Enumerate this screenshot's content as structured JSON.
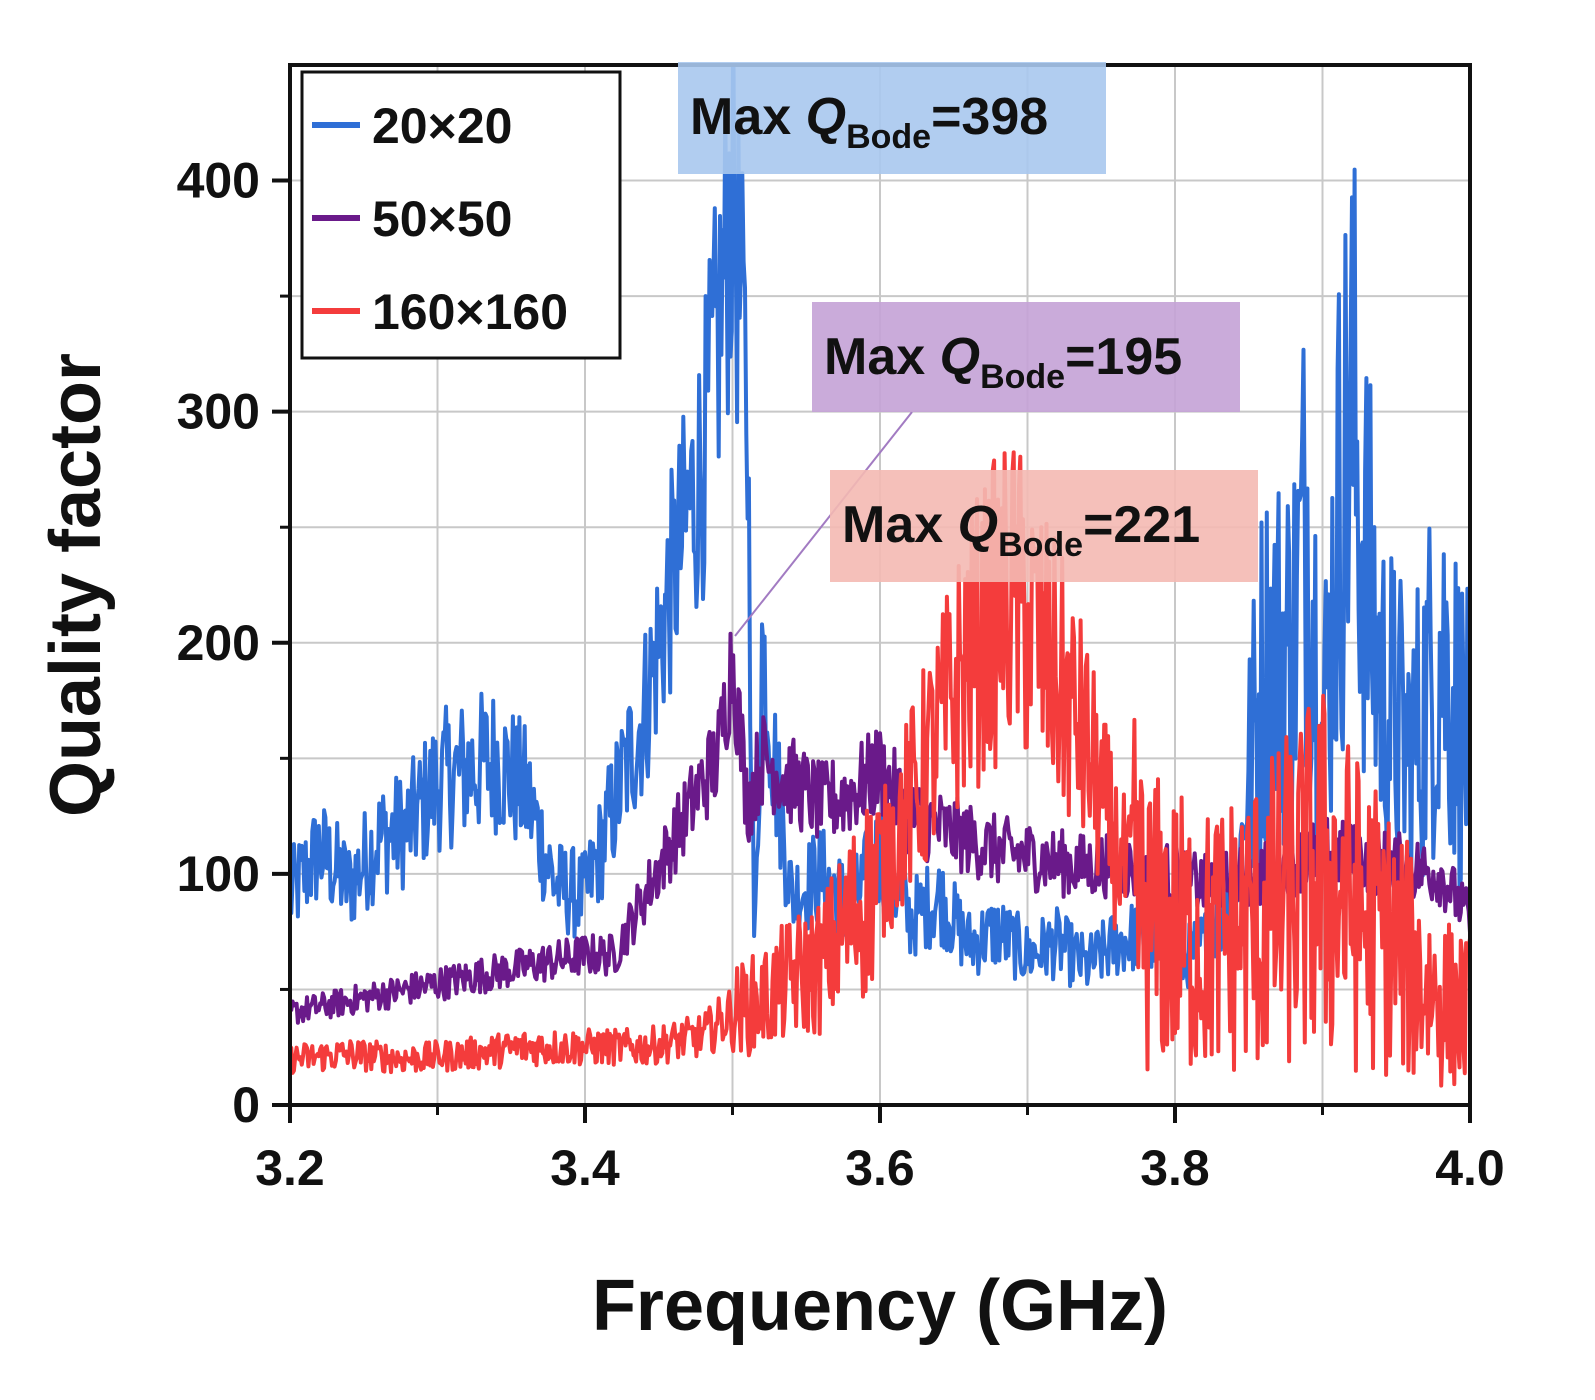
{
  "chart_data": {
    "type": "line",
    "xlabel": "Frequency (GHz)",
    "ylabel": "Quality factor",
    "xlim": [
      3.2,
      4.0
    ],
    "ylim": [
      0,
      450
    ],
    "x_ticks": [
      3.2,
      3.4,
      3.6,
      3.8,
      4.0
    ],
    "x_tick_labels": [
      "3.2",
      "3.4",
      "3.6",
      "3.8",
      "4.0"
    ],
    "y_ticks": [
      0,
      100,
      200,
      300,
      400
    ],
    "y_tick_labels": [
      "0",
      "100",
      "200",
      "300",
      "400"
    ],
    "grid": true,
    "legend_position": "top-left",
    "series": [
      {
        "name": "20×20",
        "color": "#2f6fd6",
        "points": [
          [
            3.2,
            90
          ],
          [
            3.22,
            110
          ],
          [
            3.24,
            95
          ],
          [
            3.26,
            115
          ],
          [
            3.28,
            120
          ],
          [
            3.3,
            140
          ],
          [
            3.32,
            145
          ],
          [
            3.34,
            150
          ],
          [
            3.36,
            135
          ],
          [
            3.38,
            95
          ],
          [
            3.4,
            90
          ],
          [
            3.42,
            130
          ],
          [
            3.44,
            170
          ],
          [
            3.46,
            230
          ],
          [
            3.48,
            280
          ],
          [
            3.49,
            330
          ],
          [
            3.5,
            398
          ],
          [
            3.51,
            300
          ],
          [
            3.515,
            60
          ],
          [
            3.52,
            200
          ],
          [
            3.53,
            140
          ],
          [
            3.54,
            90
          ],
          [
            3.56,
            100
          ],
          [
            3.58,
            85
          ],
          [
            3.6,
            110
          ],
          [
            3.62,
            80
          ],
          [
            3.64,
            90
          ],
          [
            3.66,
            70
          ],
          [
            3.68,
            75
          ],
          [
            3.7,
            65
          ],
          [
            3.72,
            70
          ],
          [
            3.74,
            60
          ],
          [
            3.76,
            70
          ],
          [
            3.78,
            75
          ],
          [
            3.8,
            60
          ],
          [
            3.82,
            70
          ],
          [
            3.84,
            90
          ],
          [
            3.86,
            190
          ],
          [
            3.88,
            200
          ],
          [
            3.89,
            260
          ],
          [
            3.9,
            150
          ],
          [
            3.91,
            250
          ],
          [
            3.92,
            300
          ],
          [
            3.93,
            230
          ],
          [
            3.94,
            180
          ],
          [
            3.96,
            150
          ],
          [
            3.98,
            200
          ],
          [
            4.0,
            150
          ]
        ]
      },
      {
        "name": "50×50",
        "color": "#6a1a8a",
        "points": [
          [
            3.2,
            40
          ],
          [
            3.24,
            45
          ],
          [
            3.28,
            50
          ],
          [
            3.32,
            55
          ],
          [
            3.36,
            60
          ],
          [
            3.4,
            65
          ],
          [
            3.42,
            65
          ],
          [
            3.44,
            90
          ],
          [
            3.46,
            115
          ],
          [
            3.48,
            140
          ],
          [
            3.49,
            150
          ],
          [
            3.5,
            195
          ],
          [
            3.51,
            130
          ],
          [
            3.52,
            150
          ],
          [
            3.54,
            140
          ],
          [
            3.56,
            130
          ],
          [
            3.58,
            135
          ],
          [
            3.6,
            145
          ],
          [
            3.62,
            125
          ],
          [
            3.64,
            120
          ],
          [
            3.66,
            115
          ],
          [
            3.68,
            110
          ],
          [
            3.7,
            108
          ],
          [
            3.72,
            105
          ],
          [
            3.74,
            103
          ],
          [
            3.76,
            105
          ],
          [
            3.78,
            100
          ],
          [
            3.8,
            100
          ],
          [
            3.82,
            95
          ],
          [
            3.86,
            100
          ],
          [
            3.9,
            110
          ],
          [
            3.94,
            105
          ],
          [
            3.98,
            100
          ],
          [
            4.0,
            80
          ]
        ]
      },
      {
        "name": "160×160",
        "color": "#f43c3c",
        "points": [
          [
            3.2,
            20
          ],
          [
            3.24,
            22
          ],
          [
            3.28,
            20
          ],
          [
            3.32,
            22
          ],
          [
            3.36,
            25
          ],
          [
            3.4,
            25
          ],
          [
            3.44,
            25
          ],
          [
            3.48,
            30
          ],
          [
            3.5,
            40
          ],
          [
            3.52,
            45
          ],
          [
            3.54,
            55
          ],
          [
            3.56,
            60
          ],
          [
            3.58,
            80
          ],
          [
            3.6,
            100
          ],
          [
            3.62,
            130
          ],
          [
            3.64,
            160
          ],
          [
            3.66,
            195
          ],
          [
            3.68,
            215
          ],
          [
            3.69,
            221
          ],
          [
            3.7,
            210
          ],
          [
            3.72,
            185
          ],
          [
            3.74,
            155
          ],
          [
            3.76,
            110
          ],
          [
            3.78,
            80
          ],
          [
            3.8,
            75
          ],
          [
            3.82,
            70
          ],
          [
            3.84,
            75
          ],
          [
            3.86,
            80
          ],
          [
            3.88,
            90
          ],
          [
            3.9,
            100
          ],
          [
            3.92,
            85
          ],
          [
            3.94,
            75
          ],
          [
            3.96,
            60
          ],
          [
            3.98,
            45
          ],
          [
            4.0,
            40
          ]
        ]
      }
    ],
    "annotations": [
      {
        "prefix": "Max ",
        "q": "Q",
        "sub": "Bode",
        "suffix": "=398",
        "box_color": "#a9c8ee"
      },
      {
        "prefix": "Max ",
        "q": "Q",
        "sub": "Bode",
        "suffix": "=195",
        "box_color": "#c4a2d6"
      },
      {
        "prefix": "Max ",
        "q": "Q",
        "sub": "Bode",
        "suffix": "=221",
        "box_color": "#f4b9b3"
      }
    ]
  }
}
